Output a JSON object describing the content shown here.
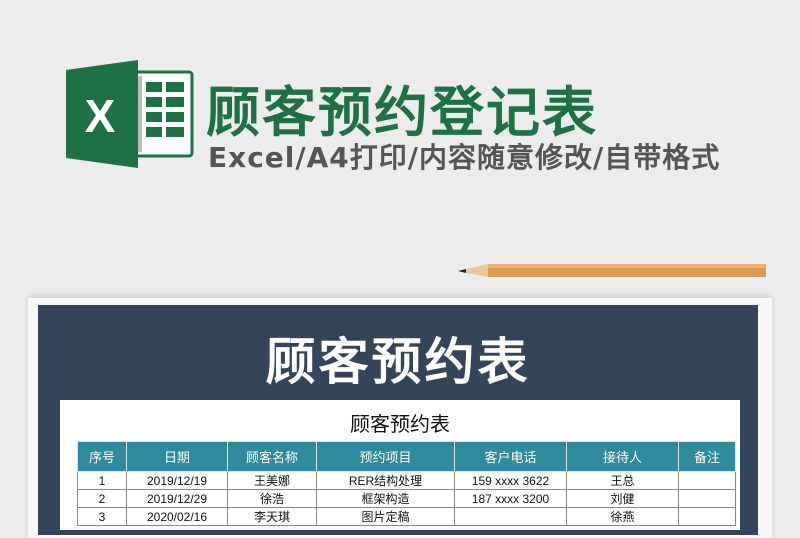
{
  "header": {
    "title": "顾客预约登记表",
    "subtitle": "Excel/A4打印/内容随意修改/自带格式",
    "logo_letter": "X"
  },
  "colors": {
    "green": "#1e7145",
    "panel": "#34445a",
    "table_header": "#2e8a9c"
  },
  "panel": {
    "title": "顾客预约表"
  },
  "sheet": {
    "title": "顾客预约表",
    "columns": [
      "序号",
      "日期",
      "顾客名称",
      "预约项目",
      "客户电话",
      "接待人",
      "备注"
    ],
    "rows": [
      [
        "1",
        "2019/12/19",
        "王美娜",
        "RER结构处理",
        "159 xxxx 3622",
        "王总",
        ""
      ],
      [
        "2",
        "2019/12/29",
        "徐浩",
        "框架构造",
        "187 xxxx 3200",
        "刘健",
        ""
      ],
      [
        "3",
        "2020/02/16",
        "李天琪",
        "图片定稿",
        "",
        "徐燕",
        ""
      ]
    ]
  }
}
